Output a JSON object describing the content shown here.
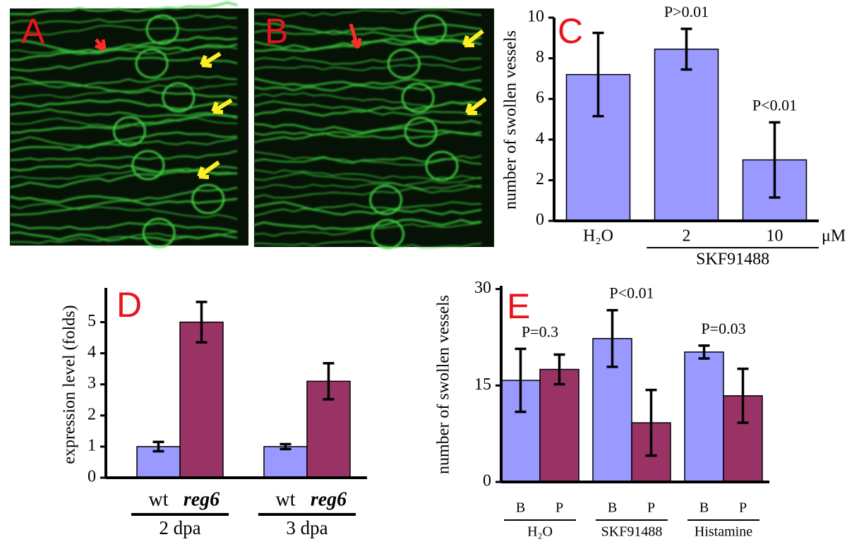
{
  "images": [
    {
      "label": "A"
    },
    {
      "label": "B"
    }
  ],
  "chart_data": [
    {
      "type": "bar",
      "panel": "C",
      "y_label": "number of swollen vessels",
      "categories": [
        "H₂O",
        "2",
        "10"
      ],
      "values": [
        7.2,
        8.45,
        3.0
      ],
      "errors": [
        2.05,
        1.0,
        1.85
      ],
      "color": "#9999ff",
      "annotations": [
        null,
        "P>0.01",
        "P<0.01"
      ],
      "group_label": "SKF91488",
      "unit": "μM",
      "ylim": [
        0,
        10
      ],
      "yticks": [
        0,
        2,
        4,
        6,
        8,
        10
      ]
    },
    {
      "type": "bar",
      "panel": "D",
      "y_label": "expression level (folds)",
      "categories": [
        "2 dpa",
        "3 dpa"
      ],
      "series": [
        {
          "name": "wt",
          "color": "#9999ff",
          "values": [
            1.0,
            1.0
          ],
          "errors": [
            0.15,
            0.08
          ]
        },
        {
          "name": "reg6",
          "color": "#993366",
          "values": [
            5.0,
            3.1
          ],
          "errors": [
            0.65,
            0.58
          ]
        }
      ],
      "ylim": [
        0,
        6.1
      ],
      "yticks": [
        0,
        1,
        2,
        3,
        4,
        5
      ]
    },
    {
      "type": "bar",
      "panel": "E",
      "y_label": "number of swollen vessels",
      "categories": [
        "H₂O",
        "SKF91488",
        "Histamine"
      ],
      "series": [
        {
          "name": "B",
          "color": "#9999ff",
          "values": [
            15.8,
            22.3,
            20.2
          ],
          "errors": [
            4.9,
            4.4,
            1.0
          ]
        },
        {
          "name": "P",
          "color": "#993366",
          "values": [
            17.5,
            9.2,
            13.4
          ],
          "errors": [
            2.3,
            5.1,
            4.2
          ]
        }
      ],
      "annotations": [
        "P=0.3",
        "P<0.01",
        "P=0.03"
      ],
      "ylim": [
        0,
        30.5
      ],
      "yticks": [
        0,
        15,
        30
      ]
    }
  ]
}
